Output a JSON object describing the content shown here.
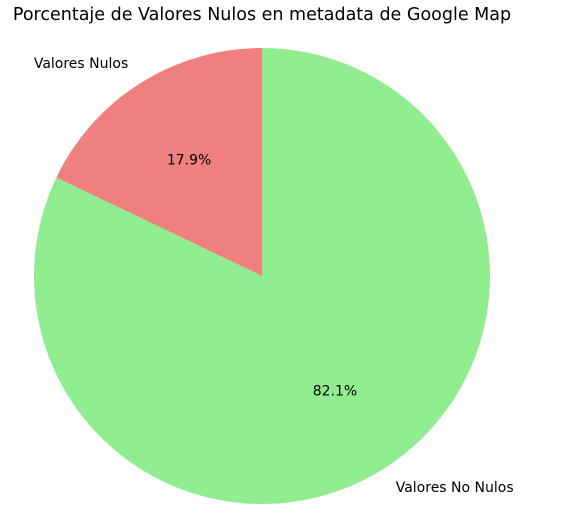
{
  "chart_data": {
    "type": "pie",
    "title": "Porcentaje de Valores Nulos en metadata de Google Map",
    "labels": [
      "Valores Nulos",
      "Valores No Nulos"
    ],
    "values": [
      17.9,
      82.1
    ],
    "percent_labels": [
      "17.9%",
      "82.1%"
    ],
    "colors": [
      "#f08080",
      "#90ee90"
    ],
    "start_angle_deg": 90,
    "direction": "counterclockwise",
    "legend": "none"
  }
}
